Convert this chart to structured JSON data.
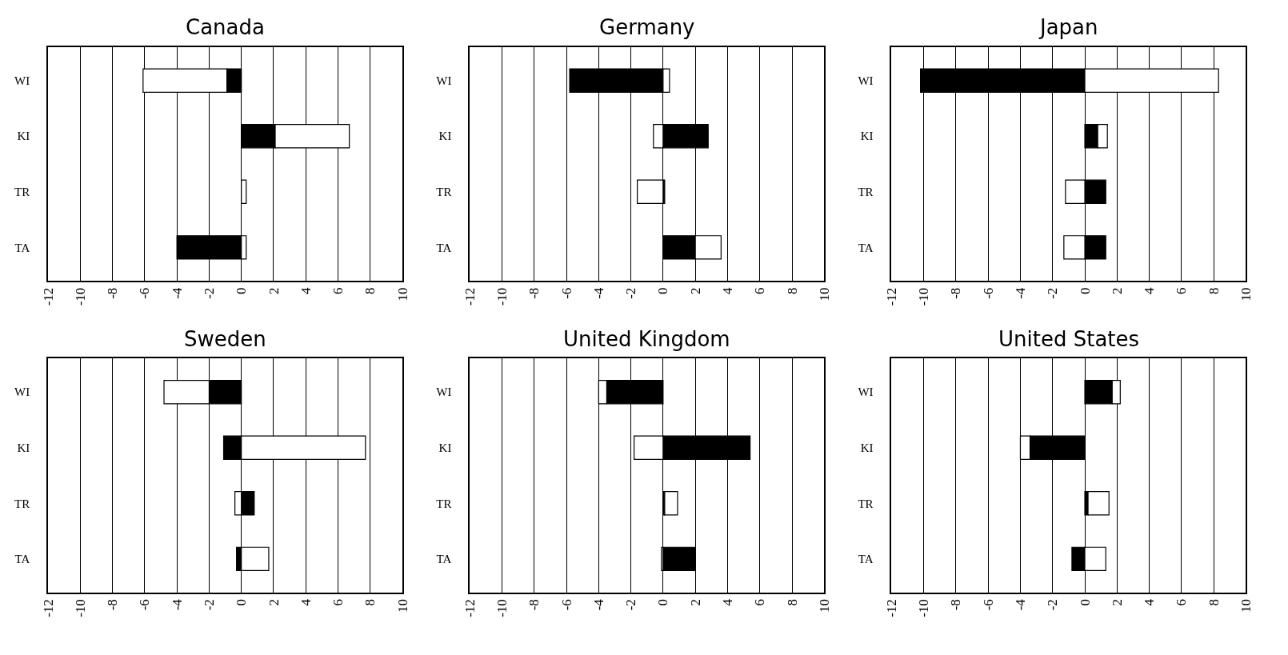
{
  "chart_data": [
    {
      "type": "bar",
      "title": "Canada",
      "orientation": "horizontal",
      "stacked": true,
      "categories": [
        "WI",
        "KI",
        "TR",
        "TA"
      ],
      "xlim": [
        -12,
        10
      ],
      "xticks": [
        -12,
        -10,
        -8,
        -6,
        -4,
        -2,
        0,
        2,
        4,
        6,
        8,
        10
      ],
      "grid": "x",
      "series": [
        {
          "color": "#000000",
          "values": [
            -0.9,
            2.1,
            0,
            -4.0
          ]
        },
        {
          "color": "#ffffff",
          "values": [
            -5.2,
            4.6,
            0.3,
            0.3
          ]
        }
      ]
    },
    {
      "type": "bar",
      "title": "Germany",
      "orientation": "horizontal",
      "stacked": true,
      "categories": [
        "WI",
        "KI",
        "TR",
        "TA"
      ],
      "xlim": [
        -12,
        10
      ],
      "xticks": [
        -12,
        -10,
        -8,
        -6,
        -4,
        -2,
        0,
        2,
        4,
        6,
        8,
        10
      ],
      "grid": "x",
      "series": [
        {
          "color": "#000000",
          "values": [
            -5.8,
            2.8,
            0.1,
            2.0
          ]
        },
        {
          "color": "#ffffff",
          "values": [
            0.4,
            -0.6,
            -1.6,
            1.6
          ]
        }
      ]
    },
    {
      "type": "bar",
      "title": "Japan",
      "orientation": "horizontal",
      "stacked": true,
      "categories": [
        "WI",
        "KI",
        "TR",
        "TA"
      ],
      "xlim": [
        -12,
        10
      ],
      "xticks": [
        -12,
        -10,
        -8,
        -6,
        -4,
        -2,
        0,
        2,
        4,
        6,
        8,
        10
      ],
      "grid": "x",
      "series": [
        {
          "color": "#000000",
          "values": [
            -10.2,
            0.8,
            1.3,
            1.3
          ]
        },
        {
          "color": "#ffffff",
          "values": [
            8.3,
            0.6,
            -1.2,
            -1.3
          ]
        }
      ]
    },
    {
      "type": "bar",
      "title": "Sweden",
      "orientation": "horizontal",
      "stacked": true,
      "categories": [
        "WI",
        "KI",
        "TR",
        "TA"
      ],
      "xlim": [
        -12,
        10
      ],
      "xticks": [
        -12,
        -10,
        -8,
        -6,
        -4,
        -2,
        0,
        2,
        4,
        6,
        8,
        10
      ],
      "grid": "x",
      "series": [
        {
          "color": "#000000",
          "values": [
            -2.0,
            -1.1,
            0.8,
            -0.3
          ]
        },
        {
          "color": "#ffffff",
          "values": [
            -2.8,
            7.7,
            -0.4,
            1.7
          ]
        }
      ]
    },
    {
      "type": "bar",
      "title": "United Kingdom",
      "orientation": "horizontal",
      "stacked": true,
      "categories": [
        "WI",
        "KI",
        "TR",
        "TA"
      ],
      "xlim": [
        -12,
        10
      ],
      "xticks": [
        -12,
        -10,
        -8,
        -6,
        -4,
        -2,
        0,
        2,
        4,
        6,
        8,
        10
      ],
      "grid": "x",
      "series": [
        {
          "color": "#000000",
          "values": [
            -3.5,
            5.4,
            0.1,
            2.0
          ]
        },
        {
          "color": "#ffffff",
          "values": [
            -0.5,
            -1.8,
            0.8,
            -0.1
          ]
        }
      ]
    },
    {
      "type": "bar",
      "title": "United States",
      "orientation": "horizontal",
      "stacked": true,
      "categories": [
        "WI",
        "KI",
        "TR",
        "TA"
      ],
      "xlim": [
        -12,
        10
      ],
      "xticks": [
        -12,
        -10,
        -8,
        -6,
        -4,
        -2,
        0,
        2,
        4,
        6,
        8,
        10
      ],
      "grid": "x",
      "series": [
        {
          "color": "#000000",
          "values": [
            1.7,
            -3.4,
            0.2,
            -0.8
          ]
        },
        {
          "color": "#ffffff",
          "values": [
            0.5,
            -0.6,
            1.3,
            1.3
          ]
        }
      ]
    }
  ]
}
